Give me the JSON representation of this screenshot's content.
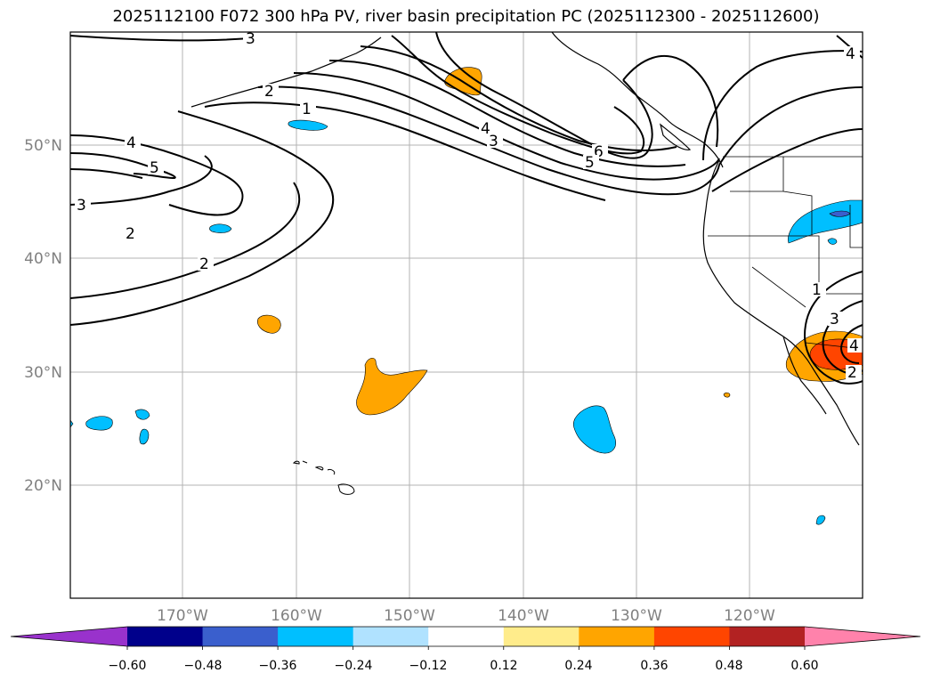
{
  "title": "2025112100 F072 300 hPa PV, river basin precipitation PC (2025112300 - 2025112600)",
  "map": {
    "lat_labels": [
      "50°N",
      "40°N",
      "30°N",
      "20°N"
    ],
    "lon_labels": [
      "170°W",
      "160°W",
      "150°W",
      "140°W",
      "130°W",
      "120°W"
    ],
    "contour_labels": [
      "3",
      "2",
      "1",
      "4",
      "5",
      "3",
      "2",
      "2",
      "4",
      "3",
      "6",
      "5",
      "1",
      "3",
      "4",
      "2",
      "4"
    ]
  },
  "colorbar": {
    "colors": [
      "#9932cc",
      "#00008b",
      "#3a5fcd",
      "#00bfff",
      "#b0e2ff",
      "#ffffff",
      "#ffec8b",
      "#ffa500",
      "#ff4500",
      "#b22222",
      "#ff82ab"
    ],
    "tick_labels": [
      "−0.60",
      "−0.48",
      "−0.36",
      "−0.24",
      "−0.12",
      "0.12",
      "0.24",
      "0.36",
      "0.48",
      "0.60"
    ]
  }
}
